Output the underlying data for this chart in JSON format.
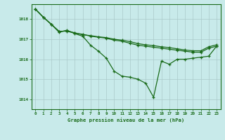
{
  "background_color": "#c8eaea",
  "grid_color": "#aacaca",
  "line_color": "#1a6b1a",
  "title": "Graphe pression niveau de la mer (hPa)",
  "xlim": [
    -0.5,
    23.5
  ],
  "ylim": [
    1013.5,
    1018.75
  ],
  "yticks": [
    1014,
    1015,
    1016,
    1017,
    1018
  ],
  "xticks": [
    0,
    1,
    2,
    3,
    4,
    5,
    6,
    7,
    8,
    9,
    10,
    11,
    12,
    13,
    14,
    15,
    16,
    17,
    18,
    19,
    20,
    21,
    22,
    23
  ],
  "series1_y": [
    1018.5,
    1018.1,
    1017.75,
    1017.4,
    1017.4,
    1017.3,
    1017.25,
    1017.15,
    1017.1,
    1017.05,
    1016.95,
    1016.9,
    1016.8,
    1016.7,
    1016.65,
    1016.6,
    1016.55,
    1016.5,
    1016.45,
    1016.4,
    1016.35,
    1016.35,
    1016.55,
    1016.65
  ],
  "series2_y": [
    1018.5,
    1018.1,
    1017.75,
    1017.35,
    1017.45,
    1017.28,
    1017.15,
    1016.7,
    1016.4,
    1016.05,
    1015.4,
    1015.15,
    1015.1,
    1015.0,
    1014.8,
    1014.1,
    1015.9,
    1015.75,
    1016.0,
    1016.0,
    1016.05,
    1016.1,
    1016.15,
    1016.65
  ],
  "series3_y": [
    1018.5,
    1018.1,
    1017.75,
    1017.38,
    1017.42,
    1017.32,
    1017.22,
    1017.18,
    1017.12,
    1017.08,
    1017.0,
    1016.95,
    1016.88,
    1016.78,
    1016.72,
    1016.68,
    1016.62,
    1016.58,
    1016.52,
    1016.46,
    1016.42,
    1016.42,
    1016.62,
    1016.72
  ]
}
